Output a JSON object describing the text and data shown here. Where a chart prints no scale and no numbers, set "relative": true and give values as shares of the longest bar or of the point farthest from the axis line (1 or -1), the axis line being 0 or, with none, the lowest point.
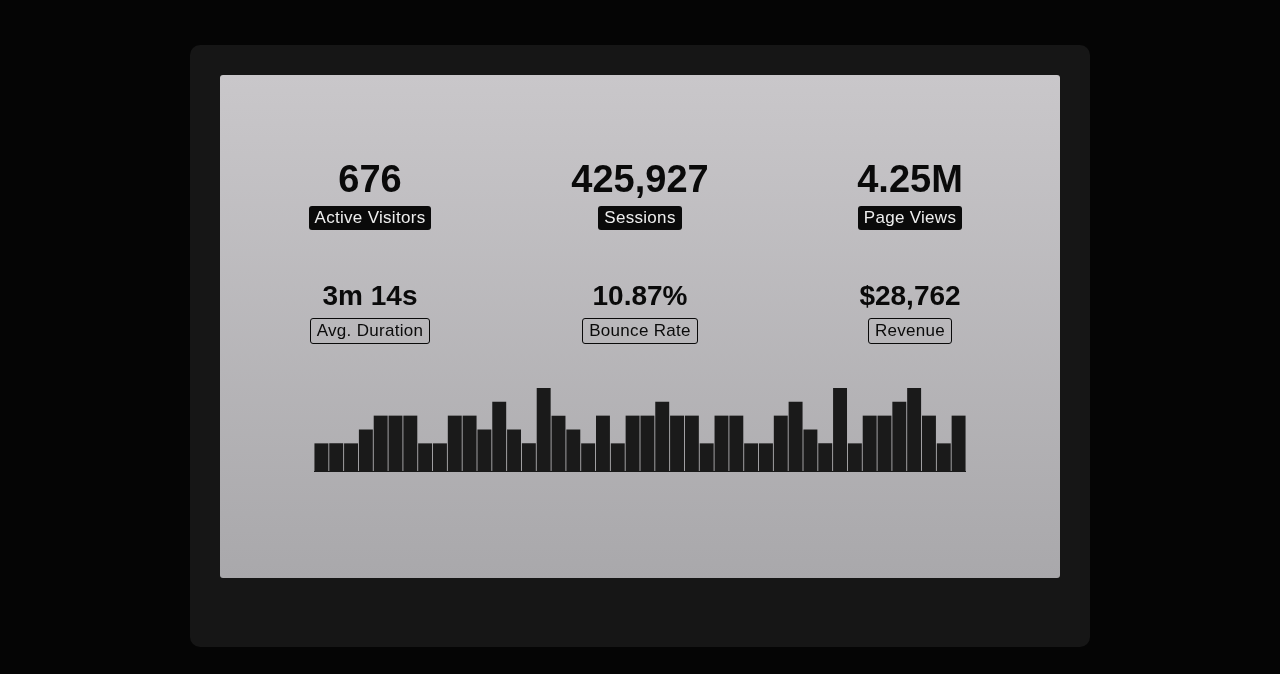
{
  "chart_data": [
    {
      "type": "other",
      "annotations": [
        "676",
        "Active Visitors",
        "425,927",
        "Sessions",
        "4.25M",
        "Page Views",
        "3m 14s",
        "Avg. Duration",
        "10.87%",
        "Bounce Rate",
        "$28,762",
        "Revenue"
      ]
    },
    {
      "type": "bar",
      "relative": true,
      "color": "#1a1a1a",
      "categories": [
        null,
        null,
        null,
        null,
        null,
        null,
        null,
        null,
        null,
        null,
        null,
        null,
        null,
        null,
        null,
        null,
        null,
        null,
        null,
        null,
        null,
        null,
        null,
        null,
        null,
        null,
        null,
        null,
        null,
        null,
        null,
        null,
        null,
        null,
        null,
        null,
        null,
        null,
        null,
        null,
        null,
        null,
        null,
        null
      ],
      "values": [
        0.333,
        0.333,
        0.333,
        0.5,
        0.667,
        0.667,
        0.667,
        0.333,
        0.333,
        0.667,
        0.667,
        0.5,
        0.833,
        0.5,
        0.333,
        1,
        0.667,
        0.5,
        0.333,
        0.667,
        0.333,
        0.667,
        0.667,
        0.833,
        0.667,
        0.667,
        0.333,
        0.667,
        0.667,
        0.333,
        0.333,
        0.667,
        0.833,
        0.5,
        0.333,
        1,
        0.333,
        0.667,
        0.667,
        0.833,
        1,
        0.667,
        0.333,
        0.667
      ]
    }
  ]
}
